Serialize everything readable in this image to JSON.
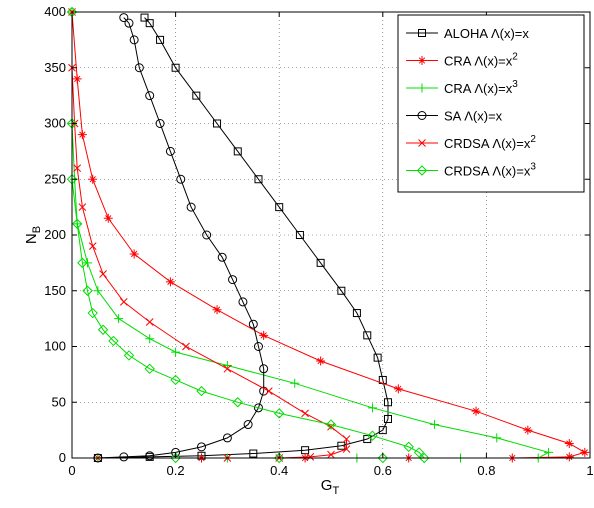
{
  "chart_data": {
    "type": "line",
    "xlabel": "G",
    "xlabel_sub": "T",
    "ylabel": "N",
    "ylabel_sub": "B",
    "xlim": [
      0,
      1
    ],
    "ylim": [
      0,
      400
    ],
    "xticks": [
      "0",
      "0.2",
      "0.4",
      "0.6",
      "0.8",
      "1"
    ],
    "yticks": [
      "0",
      "50",
      "100",
      "150",
      "200",
      "250",
      "300",
      "350",
      "400"
    ],
    "grid": "dotted",
    "legend_position": "top-right",
    "series": [
      {
        "name": "ALOHA Λ(x)=x",
        "color": "#000000",
        "marker": "square",
        "points": [
          [
            0.05,
            0
          ],
          [
            0.15,
            1
          ],
          [
            0.25,
            2
          ],
          [
            0.35,
            4
          ],
          [
            0.45,
            7
          ],
          [
            0.52,
            11
          ],
          [
            0.57,
            17
          ],
          [
            0.6,
            25
          ],
          [
            0.61,
            35
          ],
          [
            0.61,
            50
          ],
          [
            0.6,
            70
          ],
          [
            0.59,
            90
          ],
          [
            0.57,
            110
          ],
          [
            0.55,
            130
          ],
          [
            0.52,
            150
          ],
          [
            0.48,
            175
          ],
          [
            0.44,
            200
          ],
          [
            0.4,
            225
          ],
          [
            0.36,
            250
          ],
          [
            0.32,
            275
          ],
          [
            0.28,
            300
          ],
          [
            0.24,
            325
          ],
          [
            0.2,
            350
          ],
          [
            0.17,
            375
          ],
          [
            0.15,
            390
          ],
          [
            0.14,
            395
          ]
        ]
      },
      {
        "name": "CRA Λ(x)=x^2",
        "sup": "2",
        "color": "#ff0000",
        "marker": "asterisk",
        "points": [
          [
            0.05,
            0
          ],
          [
            0.25,
            0
          ],
          [
            0.45,
            0
          ],
          [
            0.65,
            0
          ],
          [
            0.85,
            0
          ],
          [
            0.96,
            1
          ],
          [
            0.99,
            5
          ],
          [
            0.96,
            13
          ],
          [
            0.88,
            25
          ],
          [
            0.78,
            42
          ],
          [
            0.63,
            62
          ],
          [
            0.48,
            87
          ],
          [
            0.37,
            110
          ],
          [
            0.28,
            133
          ],
          [
            0.19,
            158
          ],
          [
            0.12,
            183
          ],
          [
            0.07,
            215
          ],
          [
            0.04,
            250
          ],
          [
            0.02,
            290
          ],
          [
            0.01,
            340
          ],
          [
            0.0,
            400
          ]
        ]
      },
      {
        "name": "CRA Λ(x)=x^3",
        "sup": "3",
        "color": "#00dd00",
        "marker": "plus",
        "points": [
          [
            0.05,
            0
          ],
          [
            0.3,
            0
          ],
          [
            0.55,
            0
          ],
          [
            0.75,
            0
          ],
          [
            0.9,
            0
          ],
          [
            0.92,
            5
          ],
          [
            0.82,
            18
          ],
          [
            0.7,
            30
          ],
          [
            0.58,
            45
          ],
          [
            0.43,
            67
          ],
          [
            0.3,
            83
          ],
          [
            0.2,
            95
          ],
          [
            0.15,
            107
          ],
          [
            0.09,
            125
          ],
          [
            0.05,
            150
          ],
          [
            0.03,
            175
          ],
          [
            0.01,
            210
          ],
          [
            0.005,
            250
          ],
          [
            0.0,
            300
          ],
          [
            0.0,
            400
          ]
        ]
      },
      {
        "name": "SA Λ(x)=x",
        "color": "#000000",
        "marker": "circle",
        "points": [
          [
            0.05,
            0
          ],
          [
            0.1,
            1
          ],
          [
            0.15,
            2
          ],
          [
            0.2,
            5
          ],
          [
            0.25,
            10
          ],
          [
            0.3,
            18
          ],
          [
            0.34,
            30
          ],
          [
            0.36,
            45
          ],
          [
            0.37,
            60
          ],
          [
            0.37,
            80
          ],
          [
            0.36,
            100
          ],
          [
            0.35,
            120
          ],
          [
            0.33,
            140
          ],
          [
            0.31,
            160
          ],
          [
            0.29,
            180
          ],
          [
            0.26,
            200
          ],
          [
            0.23,
            225
          ],
          [
            0.21,
            250
          ],
          [
            0.19,
            275
          ],
          [
            0.17,
            300
          ],
          [
            0.15,
            325
          ],
          [
            0.13,
            350
          ],
          [
            0.12,
            375
          ],
          [
            0.11,
            390
          ],
          [
            0.1,
            395
          ]
        ]
      },
      {
        "name": "CRDSA Λ(x)=x^2",
        "sup": "2",
        "color": "#ff0000",
        "marker": "x",
        "points": [
          [
            0.3,
            0
          ],
          [
            0.4,
            0
          ],
          [
            0.46,
            1
          ],
          [
            0.5,
            3
          ],
          [
            0.53,
            8
          ],
          [
            0.53,
            17
          ],
          [
            0.5,
            28
          ],
          [
            0.45,
            40
          ],
          [
            0.38,
            60
          ],
          [
            0.3,
            80
          ],
          [
            0.22,
            100
          ],
          [
            0.15,
            122
          ],
          [
            0.1,
            140
          ],
          [
            0.06,
            165
          ],
          [
            0.04,
            190
          ],
          [
            0.02,
            225
          ],
          [
            0.01,
            260
          ],
          [
            0.005,
            300
          ],
          [
            0.0,
            350
          ],
          [
            0.0,
            400
          ]
        ]
      },
      {
        "name": "CRDSA Λ(x)=x^3",
        "sup": "3",
        "color": "#00dd00",
        "marker": "diamond",
        "points": [
          [
            0.2,
            0
          ],
          [
            0.4,
            0
          ],
          [
            0.6,
            0
          ],
          [
            0.68,
            0
          ],
          [
            0.67,
            5
          ],
          [
            0.65,
            10
          ],
          [
            0.58,
            20
          ],
          [
            0.5,
            30
          ],
          [
            0.4,
            40
          ],
          [
            0.32,
            50
          ],
          [
            0.25,
            60
          ],
          [
            0.2,
            70
          ],
          [
            0.15,
            80
          ],
          [
            0.11,
            92
          ],
          [
            0.08,
            105
          ],
          [
            0.06,
            115
          ],
          [
            0.04,
            130
          ],
          [
            0.03,
            150
          ],
          [
            0.02,
            175
          ],
          [
            0.01,
            210
          ],
          [
            0.0,
            250
          ],
          [
            0.0,
            300
          ],
          [
            0.0,
            400
          ]
        ]
      }
    ]
  }
}
